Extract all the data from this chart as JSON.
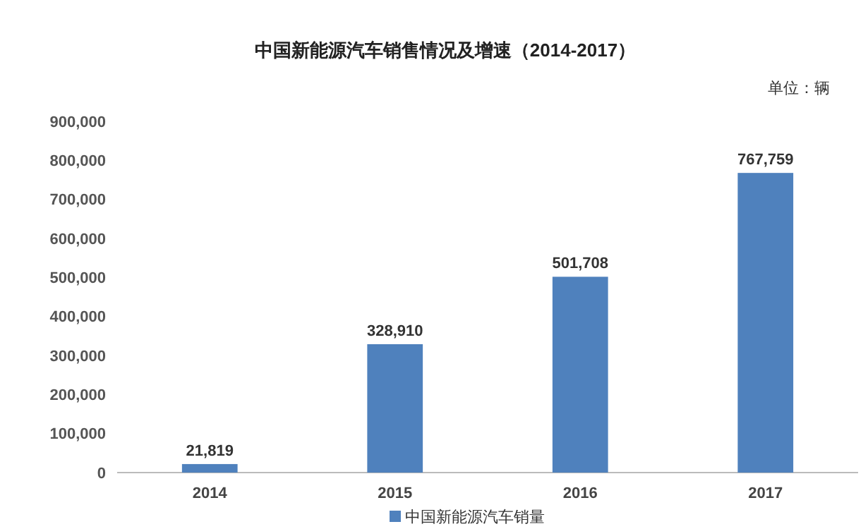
{
  "chart_data": {
    "type": "bar",
    "title": "中国新能源汽车销售情况及增速（2014-2017）",
    "annotations": [
      "单位：辆"
    ],
    "categories": [
      "2014",
      "2015",
      "2016",
      "2017"
    ],
    "series": [
      {
        "name": "中国新能源汽车销量",
        "color": "#4f81bd",
        "values": [
          21819,
          328910,
          501708,
          767759
        ],
        "value_labels": [
          "21,819",
          "328,910",
          "501,708",
          "767,759"
        ]
      }
    ],
    "ylim": [
      0,
      900000
    ],
    "yticks": [
      {
        "value": 0,
        "label": "0"
      },
      {
        "value": 100000,
        "label": "100,000"
      },
      {
        "value": 200000,
        "label": "200,000"
      },
      {
        "value": 300000,
        "label": "300,000"
      },
      {
        "value": 400000,
        "label": "400,000"
      },
      {
        "value": 500000,
        "label": "500,000"
      },
      {
        "value": 600000,
        "label": "600,000"
      },
      {
        "value": 700000,
        "label": "700,000"
      },
      {
        "value": 800000,
        "label": "800,000"
      },
      {
        "value": 900000,
        "label": "900,000"
      }
    ],
    "grid": false,
    "legend": "bottom"
  }
}
